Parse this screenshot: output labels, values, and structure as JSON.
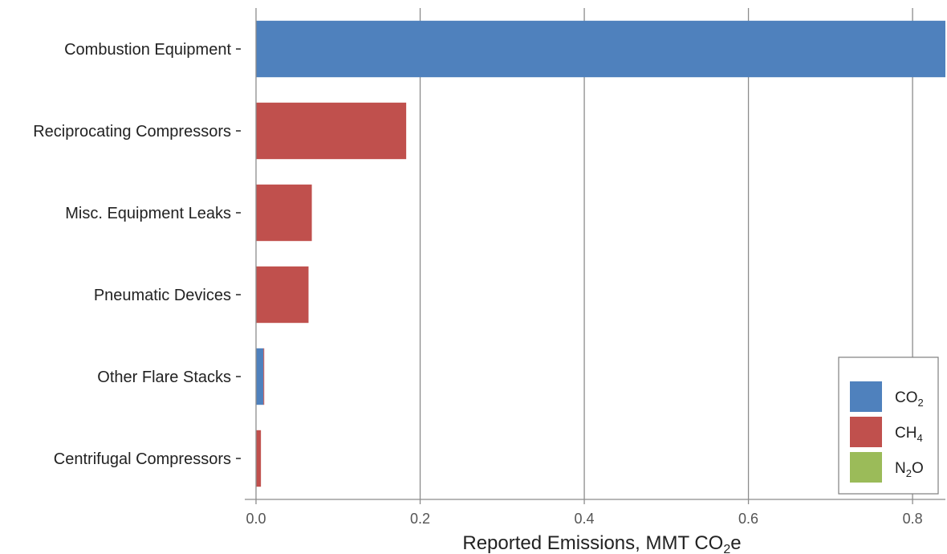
{
  "chart_data": {
    "type": "bar",
    "orientation": "horizontal",
    "categories": [
      "Combustion Equipment",
      "Reciprocating Compressors",
      "Misc. Equipment Leaks",
      "Pneumatic Devices",
      "Other Flare Stacks",
      "Centrifugal Compressors"
    ],
    "series": [
      {
        "name": "CO2",
        "label_main": "CO",
        "label_sub": "2",
        "label_tail": "",
        "color": "#4F81BD",
        "values": [
          0.84,
          0,
          0,
          0,
          0.009,
          0
        ]
      },
      {
        "name": "CH4",
        "label_main": "CH",
        "label_sub": "4",
        "label_tail": "",
        "color": "#C0504D",
        "values": [
          0,
          0.183,
          0.068,
          0.064,
          0.001,
          0.006
        ]
      },
      {
        "name": "N2O",
        "label_main": "N",
        "label_sub": "2",
        "label_tail": "O",
        "color": "#9BBB59",
        "values": [
          0,
          0,
          0,
          0,
          0,
          0
        ]
      }
    ],
    "stacked": true,
    "xlabel_main": "Reported Emissions, MMT CO",
    "xlabel_sub": "2",
    "xlabel_tail": "e",
    "xlim": [
      0,
      0.84
    ],
    "xticks": [
      0.0,
      0.2,
      0.4,
      0.6,
      0.8
    ],
    "xtick_labels": [
      "0.0",
      "0.2",
      "0.4",
      "0.6",
      "0.8"
    ],
    "grid": "vertical",
    "legend_position": "bottom-right"
  }
}
